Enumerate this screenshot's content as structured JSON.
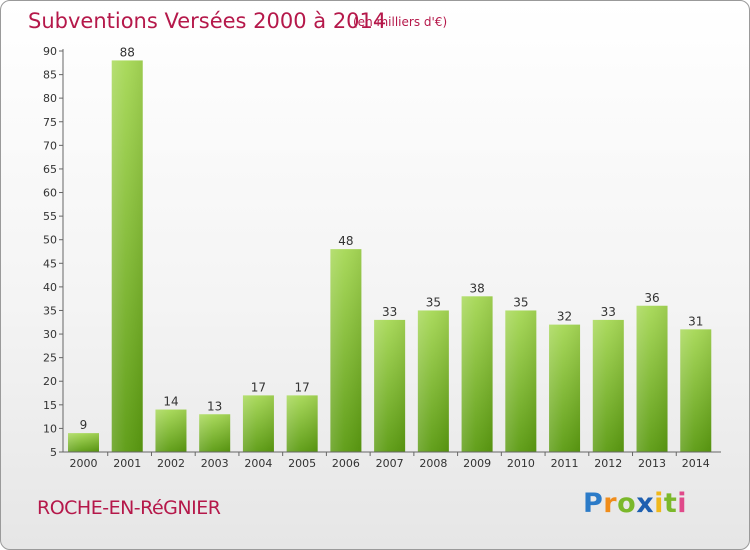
{
  "header": {
    "title": "Subventions Versées 2000 à 2014",
    "subtitle": "(en milliers d'€)"
  },
  "footer": {
    "place": "ROCHE-EN-RéGNIER",
    "logo_text": "Proxiti"
  },
  "colors": {
    "title": "#b5184a",
    "bar_light": "#9fd24a",
    "bar_dark": "#5f9e12",
    "axis": "#555555"
  },
  "chart_data": {
    "type": "bar",
    "title": "Subventions Versées 2000 à 2014",
    "subtitle": "(en milliers d'€)",
    "xlabel": "",
    "ylabel": "",
    "categories": [
      "2000",
      "2001",
      "2002",
      "2003",
      "2004",
      "2005",
      "2006",
      "2007",
      "2008",
      "2009",
      "2010",
      "2011",
      "2012",
      "2013",
      "2014"
    ],
    "values": [
      9,
      88,
      14,
      13,
      17,
      17,
      48,
      33,
      35,
      38,
      35,
      32,
      33,
      36,
      31
    ],
    "ylim": [
      5,
      90
    ],
    "yticks": [
      5,
      10,
      15,
      20,
      25,
      30,
      35,
      40,
      45,
      50,
      55,
      60,
      65,
      70,
      75,
      80,
      85,
      90
    ],
    "grid": false,
    "legend": "none"
  }
}
